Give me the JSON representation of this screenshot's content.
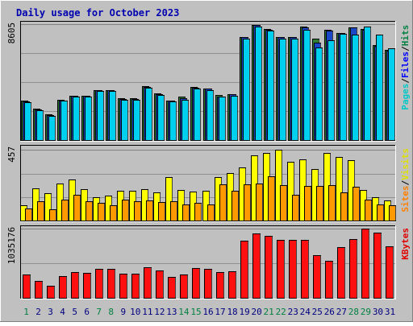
{
  "chart_data": {
    "type": "bar",
    "title": "Daily usage for October 2023",
    "categories": [
      "1",
      "2",
      "3",
      "4",
      "5",
      "6",
      "7",
      "8",
      "9",
      "10",
      "11",
      "12",
      "13",
      "14",
      "15",
      "16",
      "17",
      "18",
      "19",
      "20",
      "21",
      "22",
      "23",
      "24",
      "25",
      "26",
      "27",
      "28",
      "29",
      "30",
      "31"
    ],
    "weekend_days": [
      "1",
      "7",
      "8",
      "14",
      "15",
      "21",
      "22",
      "28",
      "29"
    ],
    "panels": [
      {
        "id": "hits-files-pages",
        "max_label": "8605",
        "ylim": [
          0,
          8605
        ],
        "legend": [
          {
            "label": "Pages",
            "color": "#00c8c8"
          },
          {
            "label": "Files",
            "color": "#0000ff"
          },
          {
            "label": "Hits",
            "color": "#008040"
          }
        ],
        "legend_separator": "/",
        "series": [
          {
            "name": "Hits",
            "color": "#2e7d32",
            "values": [
              2900,
              2350,
              1900,
              3000,
              3300,
              3300,
              3700,
              3700,
              3100,
              3100,
              3980,
              3450,
              2950,
              3200,
              3950,
              3850,
              3350,
              3400,
              7650,
              8550,
              8250,
              7650,
              7650,
              8400,
              7500,
              8200,
              7950,
              8380,
              8250,
              7050,
              6700
            ]
          },
          {
            "name": "Files",
            "color": "#1a46c8",
            "values": [
              2850,
              2250,
              1850,
              2950,
              3280,
              3280,
              3680,
              3680,
              3050,
              3050,
              3950,
              3400,
              2900,
              3100,
              3900,
              3800,
              3250,
              3380,
              7650,
              8550,
              8200,
              7650,
              7650,
              8380,
              7250,
              8100,
              7950,
              8380,
              8200,
              7000,
              6650
            ]
          },
          {
            "name": "Pages",
            "color": "#00d0f0",
            "values": [
              2800,
              2200,
              1800,
              2900,
              3250,
              3200,
              3650,
              3650,
              3000,
              3000,
              3900,
              3350,
              2850,
              3000,
              3850,
              3700,
              3200,
              3300,
              7500,
              8400,
              8100,
              7500,
              7500,
              8200,
              6900,
              7400,
              7900,
              7850,
              8400,
              7850,
              6800
            ]
          }
        ]
      },
      {
        "id": "visits-sites",
        "max_label": "457",
        "ylim": [
          0,
          457
        ],
        "legend": [
          {
            "label": "Sites",
            "color": "#ff8000"
          },
          {
            "label": "Visits",
            "color": "#e0e000"
          }
        ],
        "legend_separator": "/",
        "series": [
          {
            "name": "Visits",
            "color": "#ffff00",
            "values": [
              100,
              210,
              175,
              240,
              265,
              200,
              150,
              160,
              190,
              190,
              205,
              180,
              280,
              195,
              185,
              190,
              280,
              305,
              345,
              420,
              436,
              457,
              380,
              395,
              330,
              435,
              410,
              390,
              195,
              150,
              130
            ]
          },
          {
            "name": "Sites",
            "color": "#ff9900",
            "values": [
              80,
              125,
              75,
              135,
              165,
              125,
              115,
              100,
              135,
              125,
              130,
              120,
              125,
              105,
              115,
              105,
              235,
              190,
              235,
              240,
              285,
              230,
              165,
              225,
              225,
              230,
              180,
              220,
              135,
              105,
              100
            ]
          }
        ]
      },
      {
        "id": "kbytes",
        "max_label": "1035176",
        "ylim": [
          0,
          1035176
        ],
        "legend": [
          {
            "label": "KBytes",
            "color": "#e00000"
          }
        ],
        "legend_separator": "/",
        "series": [
          {
            "name": "KBytes",
            "color": "#ff1010",
            "values": [
              344000,
              256000,
              175000,
              323000,
              389000,
              378000,
              439000,
              439000,
              357000,
              357000,
              454000,
              415000,
              308000,
              344000,
              441000,
              430000,
              388000,
              398000,
              850000,
              959000,
              929000,
              864000,
              864000,
              864000,
              636000,
              549000,
              762000,
              880000,
              1035176,
              970000,
              775000
            ]
          }
        ]
      }
    ]
  }
}
